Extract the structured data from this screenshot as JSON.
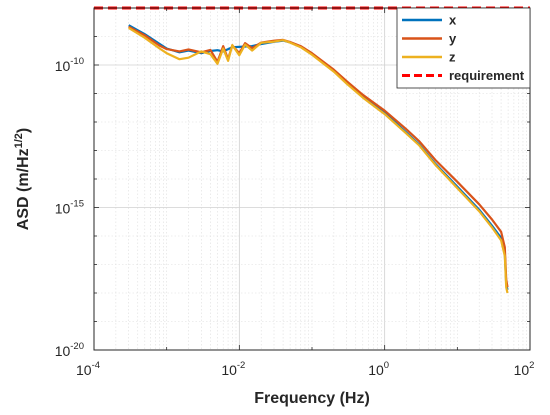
{
  "chart_data": {
    "type": "line",
    "title": "",
    "xlabel": "Frequency (Hz)",
    "ylabel": {
      "base": "ASD (m/Hz",
      "exponent": "1/2",
      "close": ")"
    },
    "xscale": "log",
    "yscale": "log",
    "xlim": [
      0.0001,
      100
    ],
    "ylim": [
      1e-20,
      1e-08
    ],
    "grid": true,
    "minor_grid": true,
    "legend_position": "top-right",
    "x_ticks": [
      {
        "value": 0.0001,
        "base": "10",
        "exp": "-4"
      },
      {
        "value": 0.01,
        "base": "10",
        "exp": "-2"
      },
      {
        "value": 1,
        "base": "10",
        "exp": "0"
      },
      {
        "value": 100,
        "base": "10",
        "exp": "2"
      }
    ],
    "y_ticks": [
      {
        "value": 1e-20,
        "base": "10",
        "exp": "-20"
      },
      {
        "value": 1e-15,
        "base": "10",
        "exp": "-15"
      },
      {
        "value": 1e-10,
        "base": "10",
        "exp": "-10"
      }
    ],
    "series": [
      {
        "name": "x",
        "color": "#0072BD",
        "x": [
          0.0003,
          0.0005,
          0.0008,
          0.001,
          0.0015,
          0.002,
          0.003,
          0.004,
          0.005,
          0.006,
          0.008,
          0.01,
          0.015,
          0.02,
          0.03,
          0.04,
          0.05,
          0.07,
          0.1,
          0.2,
          0.3,
          0.5,
          1,
          2,
          3,
          5,
          10,
          20,
          30,
          40,
          45,
          47,
          49
        ],
        "y": [
          2.5e-09,
          1.2e-09,
          5.5e-10,
          3.8e-10,
          2.8e-10,
          3.2e-10,
          2.6e-10,
          3.1e-10,
          3.3e-10,
          3e-10,
          4.2e-10,
          4.3e-10,
          4.6e-10,
          5.4e-10,
          6.5e-10,
          7.2e-10,
          6.2e-10,
          4.3e-10,
          2.4e-10,
          6.2e-11,
          2.4e-11,
          7.8e-12,
          2.1e-12,
          4.2e-13,
          1.6e-13,
          3.4e-14,
          5.4e-15,
          8.4e-16,
          2.3e-16,
          8.6e-17,
          2.4e-17,
          2.1e-18,
          1.3e-18
        ]
      },
      {
        "name": "y",
        "color": "#D95319",
        "x": [
          0.0003,
          0.0005,
          0.0008,
          0.001,
          0.0015,
          0.002,
          0.003,
          0.004,
          0.005,
          0.006,
          0.007,
          0.008,
          0.01,
          0.012,
          0.015,
          0.02,
          0.03,
          0.04,
          0.05,
          0.07,
          0.1,
          0.2,
          0.3,
          0.5,
          1,
          2,
          3,
          5,
          10,
          20,
          30,
          40,
          45,
          47,
          49
        ],
        "y": [
          2.2e-09,
          1.1e-09,
          4.8e-10,
          3.6e-10,
          3e-10,
          3.5e-10,
          2.8e-10,
          3.4e-10,
          1.3e-10,
          4.6e-10,
          1.6e-10,
          4.9e-10,
          2.6e-10,
          5.8e-10,
          3.9e-10,
          6.1e-10,
          7.1e-10,
          7.6e-10,
          6.4e-10,
          4.6e-10,
          2.6e-10,
          6.8e-11,
          2.7e-11,
          9e-12,
          2.5e-12,
          5.5e-13,
          2.1e-13,
          4.6e-14,
          8e-15,
          1.3e-15,
          3.8e-16,
          1.4e-16,
          4e-17,
          3e-18,
          1.6e-18
        ]
      },
      {
        "name": "z",
        "color": "#EDB120",
        "x": [
          0.0003,
          0.0005,
          0.0008,
          0.001,
          0.0015,
          0.002,
          0.003,
          0.004,
          0.005,
          0.006,
          0.007,
          0.008,
          0.01,
          0.012,
          0.015,
          0.02,
          0.03,
          0.04,
          0.05,
          0.07,
          0.1,
          0.2,
          0.3,
          0.5,
          1,
          2,
          3,
          5,
          10,
          20,
          30,
          40,
          45,
          47,
          49
        ],
        "y": [
          2e-09,
          9e-10,
          3.8e-10,
          2.6e-10,
          1.6e-10,
          1.8e-10,
          3e-10,
          2.4e-10,
          1.1e-10,
          3.8e-10,
          1.4e-10,
          5e-10,
          2.2e-10,
          5.2e-10,
          3.2e-10,
          6e-10,
          6.6e-10,
          7.4e-10,
          6.1e-10,
          4.2e-10,
          2.3e-10,
          5.8e-11,
          2.2e-11,
          7.2e-12,
          1.9e-12,
          3.9e-13,
          1.5e-13,
          3.1e-14,
          4.8e-15,
          7.4e-16,
          2e-16,
          7e-17,
          2e-17,
          1.6e-18,
          1e-18
        ]
      },
      {
        "name": "requirement",
        "color": "#FF0000",
        "dashed": true,
        "x": [
          0.0001,
          100
        ],
        "y": [
          1e-08,
          1e-08
        ]
      }
    ]
  }
}
